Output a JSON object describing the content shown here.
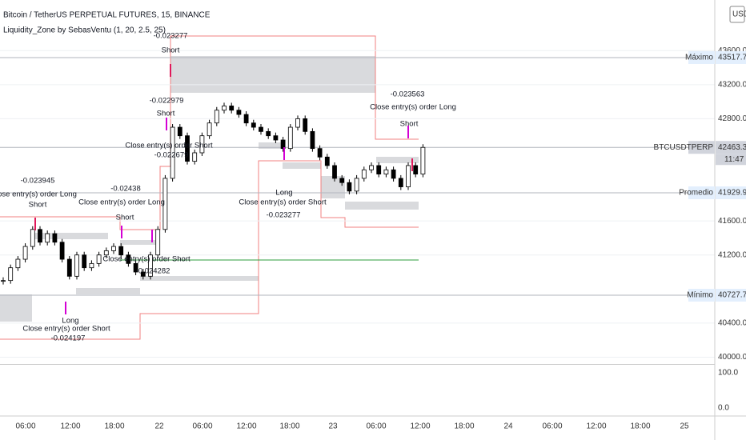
{
  "header": {
    "symbol": "Bitcoin / TetherUS PERPETUAL FUTURES, 15, BINANCE",
    "indicator": "Liquidity_Zone by SebasVentu (1, 20, 2.5, 25)",
    "currency": "USDT"
  },
  "price_axis": {
    "ticks": [
      {
        "value": 43600,
        "label": "43600.0"
      },
      {
        "value": 43200,
        "label": "43200.0"
      },
      {
        "value": 42800,
        "label": "42800.0"
      },
      {
        "value": 41600,
        "label": "41600.0"
      },
      {
        "value": 41200,
        "label": "41200.0"
      },
      {
        "value": 40400,
        "label": "40400.0"
      },
      {
        "value": 40000,
        "label": "40000.0"
      }
    ],
    "markers": [
      {
        "name": "Máximo",
        "value": 43517.7,
        "label": "43517.7"
      },
      {
        "name": "BTCUSDTPERP",
        "value": 42463.3,
        "label": "42463.3",
        "countdown": "11:47"
      },
      {
        "name": "Promedio",
        "value": 41929.9,
        "label": "41929.9"
      },
      {
        "name": "Mínimo",
        "value": 40727.7,
        "label": "40727.7"
      }
    ]
  },
  "lower_axis": {
    "ticks": [
      {
        "value": 100,
        "label": "100.0"
      },
      {
        "value": 0,
        "label": "0.0"
      }
    ]
  },
  "time_axis": [
    "06:00",
    "12:00",
    "18:00",
    "22",
    "06:00",
    "12:00",
    "18:00",
    "23",
    "06:00",
    "12:00",
    "18:00",
    "24",
    "06:00",
    "12:00",
    "18:00",
    "25"
  ],
  "price": {
    "closes": [
      40900,
      41050,
      41150,
      41300,
      41500,
      41350,
      41450,
      41350,
      41150,
      40950,
      41200,
      41050,
      41100,
      41200,
      41250,
      41300,
      41200,
      41100,
      41000,
      40950,
      41200,
      41500,
      42100,
      42700,
      42600,
      42300,
      42400,
      42600,
      42750,
      42900,
      42950,
      42900,
      42850,
      42750,
      42700,
      42650,
      42600,
      42550,
      42450,
      42700,
      42800,
      42650,
      42450,
      42350,
      42250,
      42100,
      42050,
      41950,
      42100,
      42200,
      42250,
      42150,
      42200,
      42100,
      42000,
      42250,
      42150,
      42463.3
    ]
  },
  "annotations": [
    "-0.023277",
    "Short",
    "-0.022979",
    "Short",
    "Close entry(s) order Short",
    "-0.022679",
    "-0.023945",
    "Close entry(s) order Long",
    "Short",
    "-0.02438",
    "Close entry(s) order Long",
    "Short",
    "Close entry(s) order Short",
    "-0.024282",
    "Long",
    "Close entry(s) order Short",
    "-0.024197",
    "-0.023563",
    "Close entry(s) order Long",
    "Short",
    "Long",
    "Close entry(s) order Short",
    "-0.023277"
  ]
}
